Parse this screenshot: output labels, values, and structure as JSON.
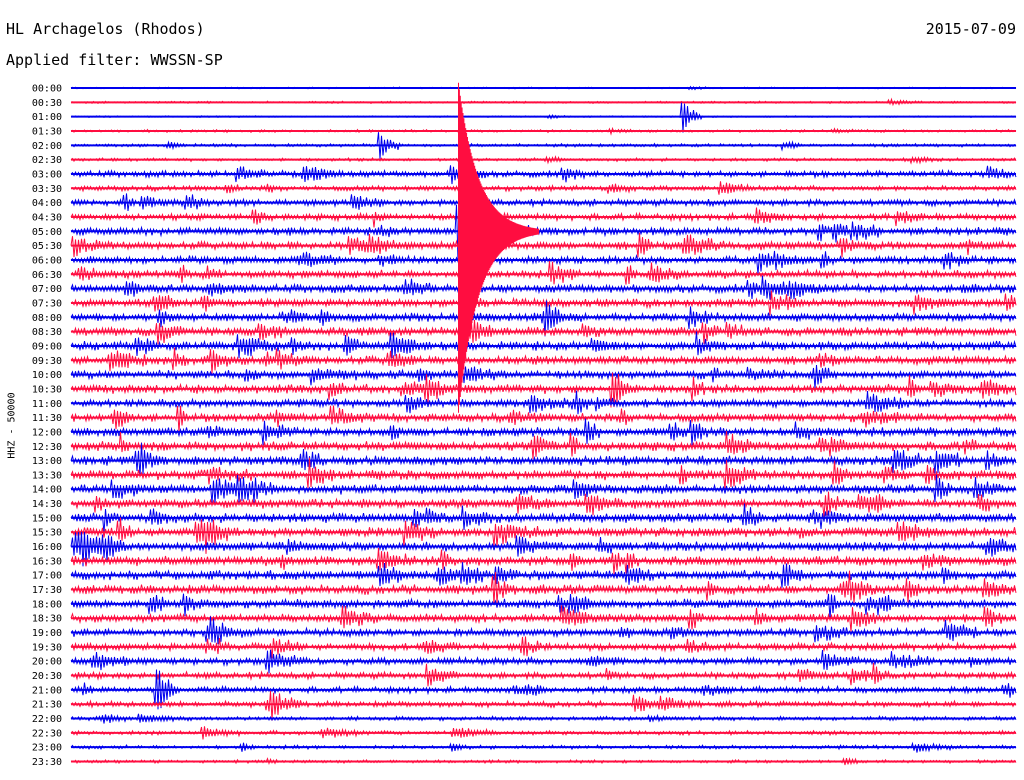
{
  "header": {
    "station": "HL Archagelos (Rhodos)",
    "filter": "Applied filter: WWSSN-SP",
    "date": "2015-07-09",
    "channel": "HHZ - 50000"
  },
  "colors": {
    "odd": "#0000ee",
    "even": "#ff0d40"
  },
  "chart_data": {
    "type": "line",
    "title": "HL Archagelos (Rhodos)",
    "subtitle": "Applied filter: WWSSN-SP",
    "ylabel": "HHZ - 50000",
    "xlabel": "",
    "rows": [
      "00:00",
      "00:30",
      "01:00",
      "01:30",
      "02:00",
      "02:30",
      "03:00",
      "03:30",
      "04:00",
      "04:30",
      "05:00",
      "05:30",
      "06:00",
      "06:30",
      "07:00",
      "07:30",
      "08:00",
      "08:30",
      "09:00",
      "09:30",
      "10:00",
      "10:30",
      "11:00",
      "11:30",
      "12:00",
      "12:30",
      "13:00",
      "13:30",
      "14:00",
      "14:30",
      "15:00",
      "15:30",
      "16:00",
      "16:30",
      "17:00",
      "17:30",
      "18:00",
      "18:30",
      "19:00",
      "19:30",
      "20:00",
      "20:30",
      "21:00",
      "21:30",
      "22:00",
      "22:30",
      "23:00",
      "23:30"
    ],
    "row_colors": [
      "blue",
      "red"
    ],
    "noise_level": [
      0.6,
      0.8,
      0.6,
      1.0,
      1.2,
      1.2,
      2.4,
      2.0,
      2.6,
      2.6,
      3.0,
      3.2,
      3.0,
      3.0,
      3.2,
      3.2,
      3.2,
      3.4,
      3.4,
      3.4,
      3.2,
      3.4,
      3.0,
      3.2,
      3.4,
      3.6,
      3.6,
      3.6,
      3.6,
      3.6,
      3.6,
      3.6,
      3.6,
      3.6,
      3.6,
      3.6,
      3.4,
      3.2,
      3.0,
      2.8,
      2.8,
      2.6,
      2.4,
      2.2,
      1.6,
      1.6,
      1.4,
      1.2
    ],
    "annotations": [
      {
        "row": 4,
        "minute": 9.8,
        "amplitude": 18,
        "label": "event"
      },
      {
        "row": 2,
        "minute": 19.4,
        "amplitude": 20,
        "label": "event"
      },
      {
        "row": 10,
        "minute": 12.3,
        "amplitude": 165,
        "label": "large teleseismic event"
      },
      {
        "row": 21,
        "minute": 17.2,
        "amplitude": 24,
        "label": "event"
      },
      {
        "row": 42,
        "minute": 2.7,
        "amplitude": 30,
        "label": "event"
      }
    ]
  }
}
